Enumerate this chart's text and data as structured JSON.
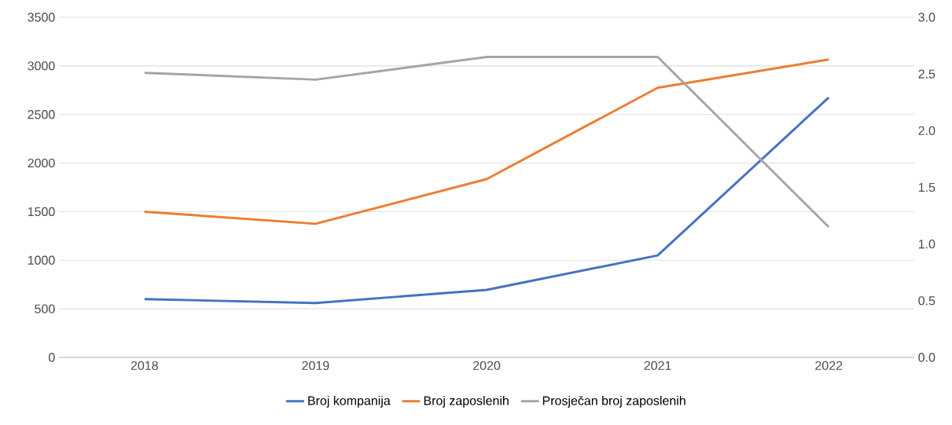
{
  "chart_data": {
    "type": "line",
    "categories": [
      "2018",
      "2019",
      "2020",
      "2021",
      "2022"
    ],
    "series": [
      {
        "name": "Broj kompanija",
        "color": "#4472c4",
        "values": [
          600,
          560,
          695,
          1050,
          2675
        ]
      },
      {
        "name": "Broj zaposlenih",
        "color": "#ed7d31",
        "values": [
          1500,
          1375,
          1835,
          2775,
          3065
        ]
      },
      {
        "name": "Prosječan broj zaposlenih",
        "color": "#a5a5a5",
        "axis": "y2",
        "values": [
          2.51,
          2.45,
          2.65,
          2.65,
          1.15
        ]
      }
    ],
    "ylim": [
      0,
      3500
    ],
    "yticks": [
      0,
      500,
      1000,
      1500,
      2000,
      2500,
      3000,
      3500
    ],
    "y2lim": [
      0,
      3
    ],
    "y2ticks": [
      {
        "value": 0,
        "label": "0.0"
      },
      {
        "value": 0.5,
        "label": "0.5"
      },
      {
        "value": 1,
        "label": "1.0"
      },
      {
        "value": 1.5,
        "label": "1.5"
      },
      {
        "value": 2,
        "label": "2.0"
      },
      {
        "value": 2.5,
        "label": "2.5"
      },
      {
        "value": 3,
        "label": "3.0"
      }
    ],
    "grid": "y",
    "legend": "bottom",
    "marker": "none",
    "line_style": "solid"
  }
}
